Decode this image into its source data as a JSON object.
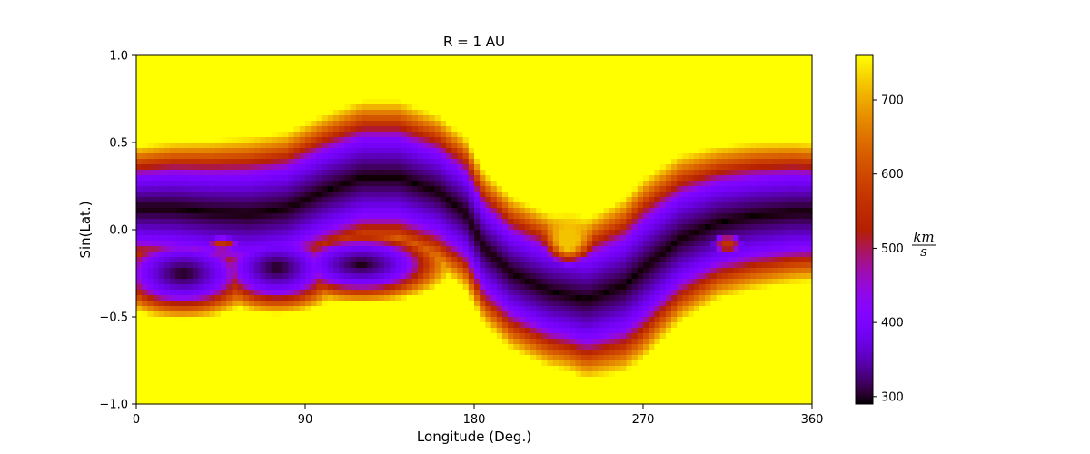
{
  "chart_data": {
    "type": "heatmap",
    "title": "R = 1 AU",
    "xlabel": "Longitude (Deg.)",
    "ylabel": "Sin(Lat.)",
    "xlim": [
      0,
      360
    ],
    "ylim": [
      -1.0,
      1.0
    ],
    "x_ticks": [
      0,
      90,
      180,
      270,
      360
    ],
    "x_tick_labels": [
      "0",
      "90",
      "180",
      "270",
      "360"
    ],
    "y_ticks": [
      1.0,
      0.5,
      0.0,
      -0.5,
      -1.0
    ],
    "y_tick_labels": [
      "1.0",
      "0.5",
      "0.0",
      "−0.5",
      "−1.0"
    ],
    "colorbar": {
      "unit_numerator": "km",
      "unit_denominator": "s",
      "range": [
        290,
        760
      ],
      "ticks": [
        700,
        600,
        500,
        400,
        300
      ],
      "tick_labels": [
        "700",
        "600",
        "500",
        "400",
        "300"
      ],
      "colormap": "gnuplot"
    },
    "field_model": {
      "background_speed": 760,
      "min_speed": 290,
      "current_sheet_centerline": [
        [
          0,
          0.12
        ],
        [
          20,
          0.12
        ],
        [
          40,
          0.1
        ],
        [
          60,
          0.09
        ],
        [
          80,
          0.12
        ],
        [
          100,
          0.22
        ],
        [
          120,
          0.3
        ],
        [
          140,
          0.3
        ],
        [
          160,
          0.22
        ],
        [
          175,
          0.1
        ],
        [
          185,
          -0.1
        ],
        [
          200,
          -0.25
        ],
        [
          220,
          -0.35
        ],
        [
          240,
          -0.4
        ],
        [
          260,
          -0.32
        ],
        [
          275,
          -0.18
        ],
        [
          290,
          -0.05
        ],
        [
          310,
          0.04
        ],
        [
          330,
          0.08
        ],
        [
          350,
          0.1
        ],
        [
          360,
          0.1
        ]
      ],
      "band_half_width": [
        [
          0,
          0.18
        ],
        [
          60,
          0.22
        ],
        [
          100,
          0.22
        ],
        [
          140,
          0.22
        ],
        [
          180,
          0.22
        ],
        [
          230,
          0.22
        ],
        [
          270,
          0.26
        ],
        [
          310,
          0.22
        ],
        [
          360,
          0.2
        ]
      ],
      "fast_wind_pockets": [
        {
          "lon": 230,
          "sinlat": -0.05,
          "rx": 14,
          "ry": 0.16,
          "speed": 720
        },
        {
          "lon": 46,
          "sinlat": -0.08,
          "rx": 8,
          "ry": 0.04,
          "speed": 560
        },
        {
          "lon": 315,
          "sinlat": -0.08,
          "rx": 8,
          "ry": 0.06,
          "speed": 560
        }
      ],
      "lower_extension_south": [
        {
          "lon": 25,
          "sinlat": -0.25,
          "rx": 20,
          "ry": 0.12
        },
        {
          "lon": 75,
          "sinlat": -0.22,
          "rx": 18,
          "ry": 0.12
        },
        {
          "lon": 120,
          "sinlat": -0.2,
          "rx": 22,
          "ry": 0.1
        }
      ]
    }
  }
}
